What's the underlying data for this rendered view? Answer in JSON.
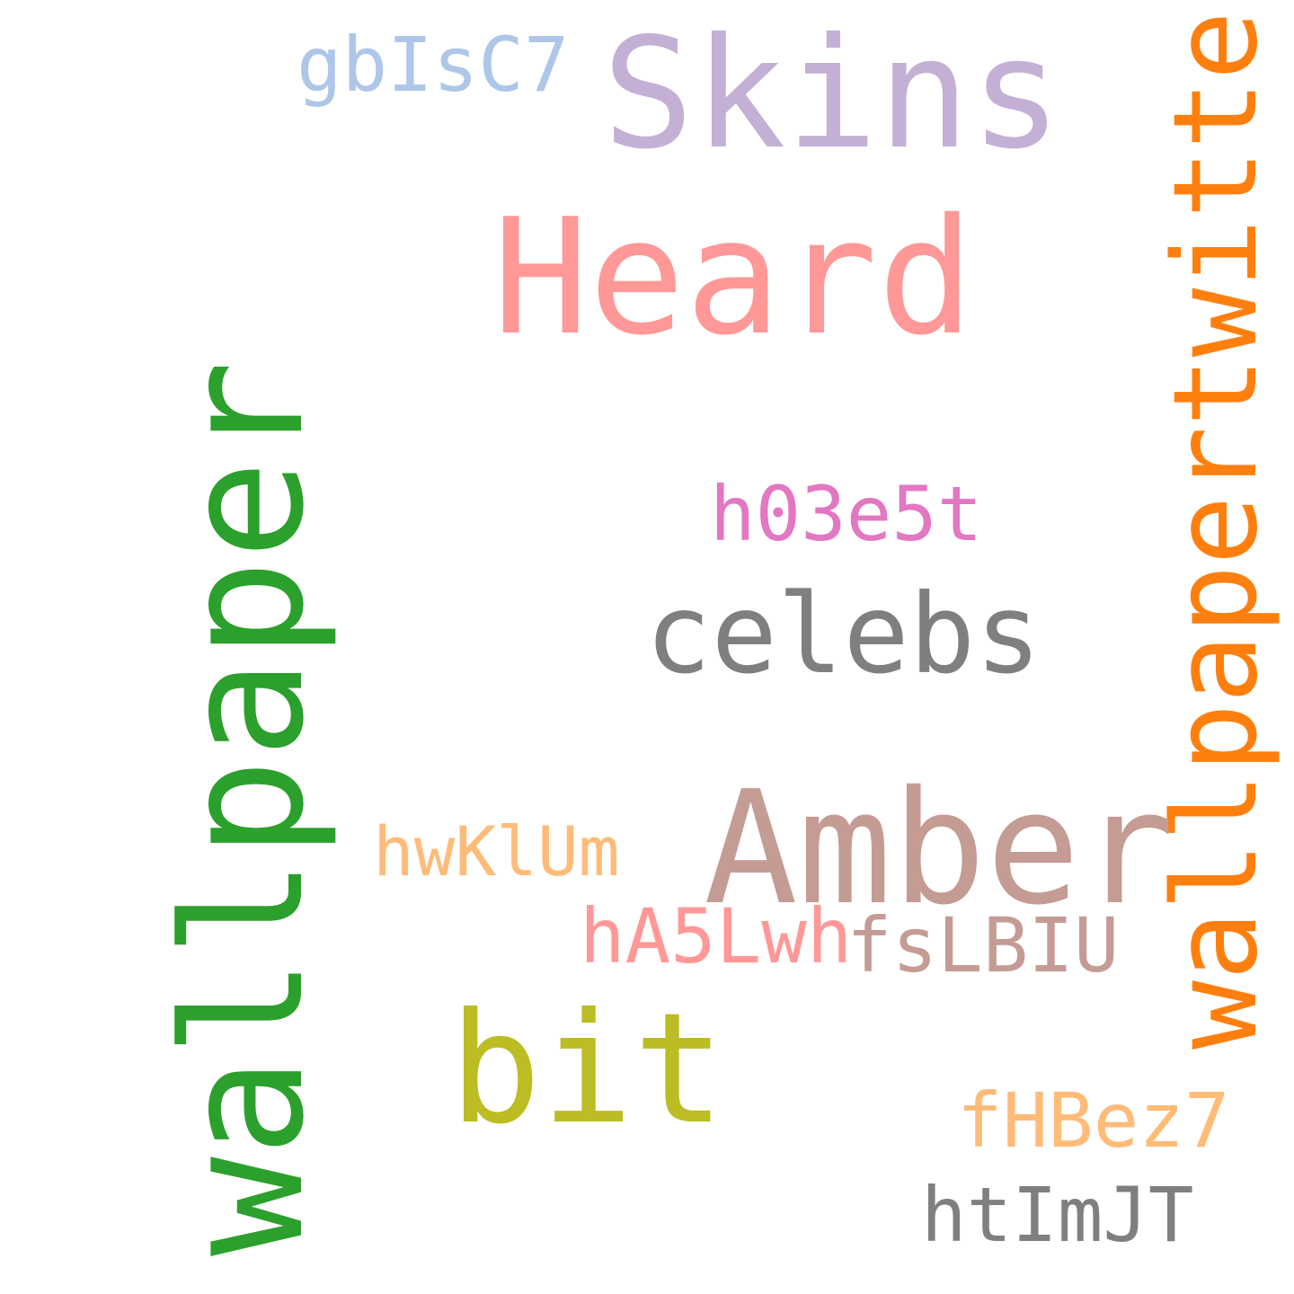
{
  "words": [
    {
      "id": "wallpaper",
      "text": "wallpaper",
      "color": "#2ca02c",
      "rotated": true
    },
    {
      "id": "wallpapertwitter",
      "text": "wallpapertwitter",
      "color": "#ff7f0e",
      "rotated": true
    },
    {
      "id": "skins",
      "text": "Skins",
      "color": "#c5b0d5",
      "rotated": false
    },
    {
      "id": "heard",
      "text": "Heard",
      "color": "#ff9896",
      "rotated": false
    },
    {
      "id": "amber",
      "text": "Amber",
      "color": "#c49c94",
      "rotated": false
    },
    {
      "id": "celebs",
      "text": "celebs",
      "color": "#7f7f7f",
      "rotated": false
    },
    {
      "id": "bit",
      "text": "bit",
      "color": "#bcbd22",
      "rotated": false
    },
    {
      "id": "gbisc7",
      "text": "gbIsC7",
      "color": "#aec7e8",
      "rotated": false
    },
    {
      "id": "h03e5t",
      "text": "h03e5t",
      "color": "#e377c2",
      "rotated": false
    },
    {
      "id": "hwklum",
      "text": "hwKlUm",
      "color": "#ffbb78",
      "rotated": false
    },
    {
      "id": "ha5lwh",
      "text": "hA5Lwh",
      "color": "#ff9896",
      "rotated": false
    },
    {
      "id": "fslbiu",
      "text": "fsLBIU",
      "color": "#c49c94",
      "rotated": false
    },
    {
      "id": "fhbez7",
      "text": "fHBez7",
      "color": "#ffbb78",
      "rotated": false
    },
    {
      "id": "htimjt",
      "text": "htImJT",
      "color": "#7f7f7f",
      "rotated": false
    }
  ]
}
